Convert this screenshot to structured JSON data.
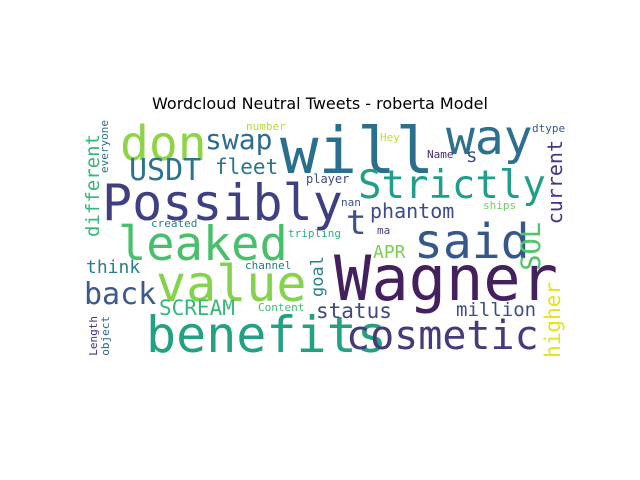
{
  "chart_data": {
    "type": "wordcloud",
    "title": "Wordcloud Neutral Tweets - roberta Model",
    "words": [
      {
        "text": "Wagner",
        "color": "#44205f"
      },
      {
        "text": "will",
        "color": "#2a6f8e"
      },
      {
        "text": "benefits",
        "color": "#23a183"
      },
      {
        "text": "Possibly",
        "color": "#3f3f83"
      },
      {
        "text": "value",
        "color": "#83d34b"
      },
      {
        "text": "leaked",
        "color": "#48c06b"
      },
      {
        "text": "way",
        "color": "#2e6e8e"
      },
      {
        "text": "said",
        "color": "#35578c"
      },
      {
        "text": "cosmetic",
        "color": "#433b7c"
      },
      {
        "text": "Strictly",
        "color": "#1f9e89"
      },
      {
        "text": "don",
        "color": "#8dd544"
      },
      {
        "text": "t",
        "color": "#3b518b"
      },
      {
        "text": "back",
        "color": "#3b5b8c"
      },
      {
        "text": "swap",
        "color": "#2f6b8e"
      },
      {
        "text": "USDT",
        "color": "#2c738e"
      },
      {
        "text": "SOL",
        "color": "#52c569"
      },
      {
        "text": "SCREAM",
        "color": "#37b879"
      },
      {
        "text": "status",
        "color": "#404688"
      },
      {
        "text": "fleet",
        "color": "#2b758e"
      },
      {
        "text": "phantom",
        "color": "#3f4a8a"
      },
      {
        "text": "think",
        "color": "#287d8e"
      },
      {
        "text": "million",
        "color": "#3d4e8a"
      },
      {
        "text": "current",
        "color": "#453781"
      },
      {
        "text": "higher",
        "color": "#e5e419"
      },
      {
        "text": "different",
        "color": "#35b779"
      },
      {
        "text": "goal",
        "color": "#26828e"
      },
      {
        "text": "APR",
        "color": "#7ad151"
      },
      {
        "text": "s",
        "color": "#3e4c8a"
      },
      {
        "text": "everyone",
        "color": "#2d718e"
      },
      {
        "text": "number",
        "color": "#b5de2b"
      },
      {
        "text": "Hey",
        "color": "#c2df23"
      },
      {
        "text": "dtype",
        "color": "#39568c"
      },
      {
        "text": "Name",
        "color": "#482979"
      },
      {
        "text": "player",
        "color": "#3f4889"
      },
      {
        "text": "nan",
        "color": "#3a548c"
      },
      {
        "text": "ma",
        "color": "#424186"
      },
      {
        "text": "created",
        "color": "#287c8e"
      },
      {
        "text": "tripling",
        "color": "#2ab07f"
      },
      {
        "text": "ships",
        "color": "#6ece58"
      },
      {
        "text": "channel",
        "color": "#2a778e"
      },
      {
        "text": "Content",
        "color": "#3dbc74"
      },
      {
        "text": "Length",
        "color": "#46327e"
      },
      {
        "text": "object",
        "color": "#31678e"
      }
    ]
  }
}
